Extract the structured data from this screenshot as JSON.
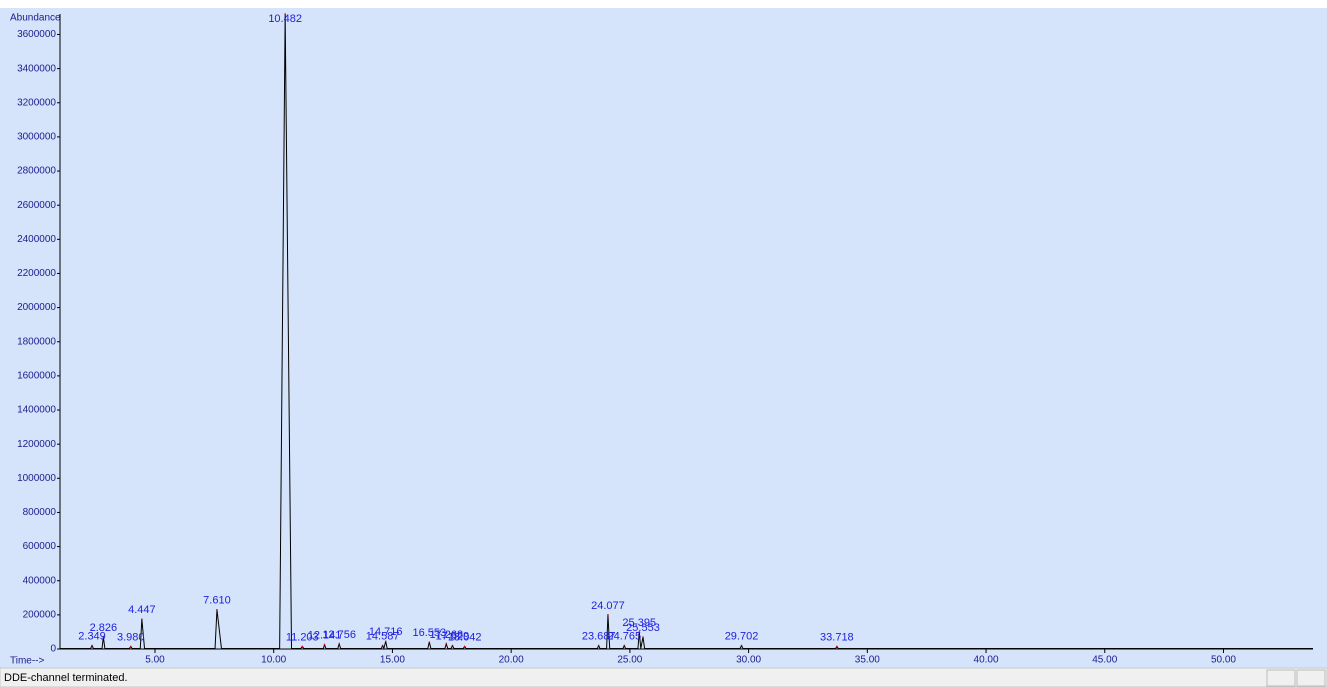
{
  "chart_data": {
    "type": "line",
    "y_label": "Abundance",
    "x_label": "Time-->",
    "status": "DDE-channel terminated.",
    "xlim": [
      1.0,
      53.77
    ],
    "ylim": [
      0,
      3720000
    ],
    "xticks": [
      {
        "value": 5,
        "label": "5.00"
      },
      {
        "value": 10,
        "label": "10.00"
      },
      {
        "value": 15,
        "label": "15.00"
      },
      {
        "value": 20,
        "label": "20.00"
      },
      {
        "value": 25,
        "label": "25.00"
      },
      {
        "value": 30,
        "label": "30.00"
      },
      {
        "value": 35,
        "label": "35.00"
      },
      {
        "value": 40,
        "label": "40.00"
      },
      {
        "value": 45,
        "label": "45.00"
      },
      {
        "value": 50,
        "label": "50.00"
      }
    ],
    "yticks": [
      0,
      200000,
      400000,
      600000,
      800000,
      1000000,
      1200000,
      1400000,
      1600000,
      1800000,
      2000000,
      2200000,
      2400000,
      2600000,
      2800000,
      3000000,
      3200000,
      3400000,
      3600000
    ],
    "series": [
      {
        "color": "#000000",
        "x": [
          1.0,
          2.29,
          2.349,
          2.41,
          2.77,
          2.826,
          2.89,
          3.92,
          3.98,
          4.04,
          4.38,
          4.447,
          4.56,
          7.53,
          7.61,
          7.8,
          10.25,
          10.482,
          10.75,
          11.14,
          11.203,
          11.27,
          12.09,
          12.141,
          12.2,
          12.7,
          12.756,
          12.82,
          14.53,
          14.587,
          14.64,
          14.716,
          14.78,
          16.49,
          16.553,
          16.62,
          17.21,
          17.268,
          17.33,
          17.47,
          17.529,
          17.59,
          17.98,
          18.042,
          18.1,
          23.63,
          23.687,
          23.74,
          24.02,
          24.077,
          24.15,
          24.71,
          24.765,
          24.82,
          25.34,
          25.395,
          25.46,
          25.553,
          25.62,
          29.64,
          29.702,
          29.76,
          33.66,
          33.718,
          33.78,
          53.77
        ],
        "values": [
          3000,
          3000,
          20000,
          3000,
          3000,
          70000,
          3000,
          3000,
          15000,
          3000,
          3000,
          175000,
          3000,
          3000,
          230000,
          3000,
          3000,
          3720000,
          3000,
          3000,
          15000,
          3000,
          3000,
          25000,
          3000,
          3000,
          30000,
          3000,
          3000,
          20000,
          3000,
          45000,
          3000,
          3000,
          40000,
          3000,
          3000,
          30000,
          3000,
          3000,
          20000,
          3000,
          3000,
          15000,
          3000,
          3000,
          20000,
          3000,
          3000,
          200000,
          3000,
          3000,
          20000,
          3000,
          3000,
          100000,
          3000,
          70000,
          3000,
          3000,
          20000,
          3000,
          3000,
          15000,
          3000,
          3000
        ]
      }
    ],
    "peaks": [
      {
        "time": 2.349,
        "label": "2.349",
        "height": 20000
      },
      {
        "time": 2.826,
        "label": "2.826",
        "height": 70000
      },
      {
        "time": 3.98,
        "label": "3.980",
        "height": 15000
      },
      {
        "time": 4.447,
        "label": "4.447",
        "height": 175000
      },
      {
        "time": 7.61,
        "label": "7.610",
        "height": 230000
      },
      {
        "time": 10.482,
        "label": "10.482",
        "height": 3720000
      },
      {
        "time": 11.203,
        "label": "11.203",
        "height": 15000
      },
      {
        "time": 12.141,
        "label": "12.141",
        "height": 25000
      },
      {
        "time": 12.756,
        "label": "12.756",
        "height": 30000
      },
      {
        "time": 14.587,
        "label": "14.587",
        "height": 20000
      },
      {
        "time": 14.716,
        "label": "14.716",
        "height": 45000
      },
      {
        "time": 16.553,
        "label": "16.553",
        "height": 40000
      },
      {
        "time": 17.268,
        "label": "17.268",
        "height": 30000
      },
      {
        "time": 17.529,
        "label": "17.529",
        "height": 20000
      },
      {
        "time": 18.042,
        "label": "18.042",
        "height": 15000
      },
      {
        "time": 23.687,
        "label": "23.687",
        "height": 20000
      },
      {
        "time": 24.077,
        "label": "24.077",
        "height": 200000
      },
      {
        "time": 24.765,
        "label": "24.765",
        "height": 20000
      },
      {
        "time": 25.395,
        "label": "25.395",
        "height": 100000
      },
      {
        "time": 25.553,
        "label": "25.553",
        "height": 70000
      },
      {
        "time": 29.702,
        "label": "29.702",
        "height": 20000
      },
      {
        "time": 33.718,
        "label": "33.718",
        "height": 15000
      }
    ]
  }
}
